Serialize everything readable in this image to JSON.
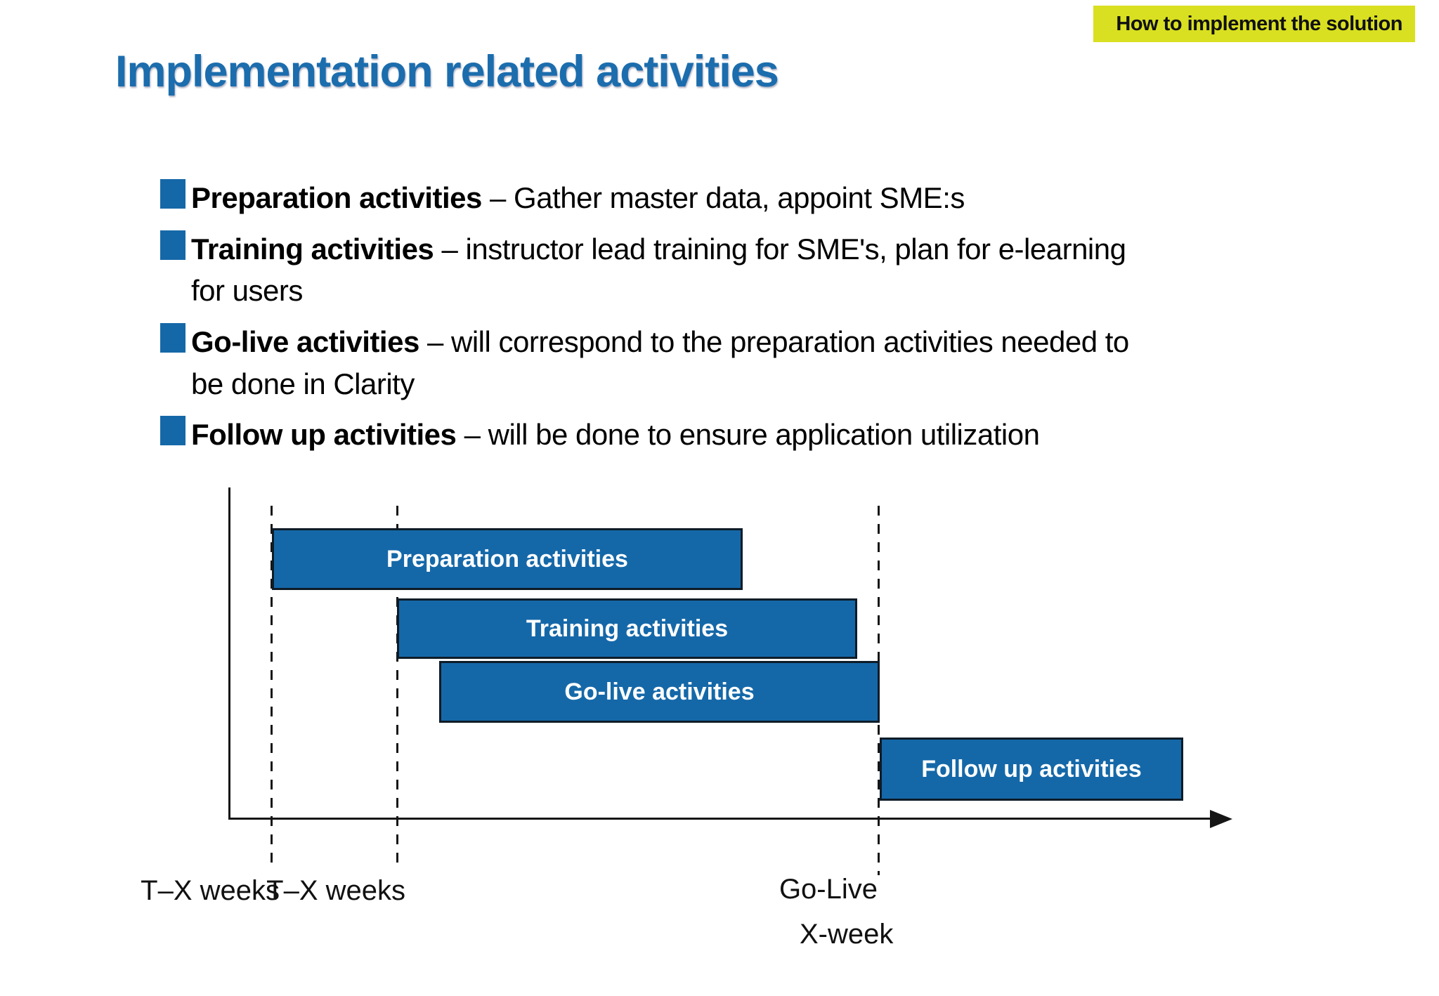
{
  "tag": {
    "label": "How to implement the solution",
    "bg_color": "#d9e021"
  },
  "title": "Implementation related activities",
  "colors": {
    "accent_blue": "#1568a8",
    "title_blue": "#1b6dad",
    "tag_yellow": "#d9e021",
    "bar_text": "#ffffff",
    "axis_black": "#161616"
  },
  "bullets": [
    {
      "term": "Preparation activities",
      "dash": "–",
      "line1": "Gather master data, appoint SME:s",
      "line2": ""
    },
    {
      "term": "Training activities",
      "dash": "–",
      "line1": "instructor lead training for SME's, plan for e-learning",
      "line2": "for users"
    },
    {
      "term": "Go-live activities",
      "dash": "–",
      "line1": "will correspond to the preparation activities needed to",
      "line2": "be done in Clarity"
    },
    {
      "term": "Follow up activities",
      "dash": "–",
      "line1": "will be done to ensure application utilization",
      "line2": ""
    }
  ],
  "gantt": {
    "bars": [
      {
        "label": "Preparation activities"
      },
      {
        "label": "Training activities"
      },
      {
        "label": "Go-live activities"
      },
      {
        "label": "Follow up activities"
      }
    ],
    "axis_labels": {
      "t_minus_x_1": "T–X weeks",
      "t_minus_x_2": "T–X weeks",
      "go_live": "Go-Live",
      "x_week": "X-week"
    }
  }
}
